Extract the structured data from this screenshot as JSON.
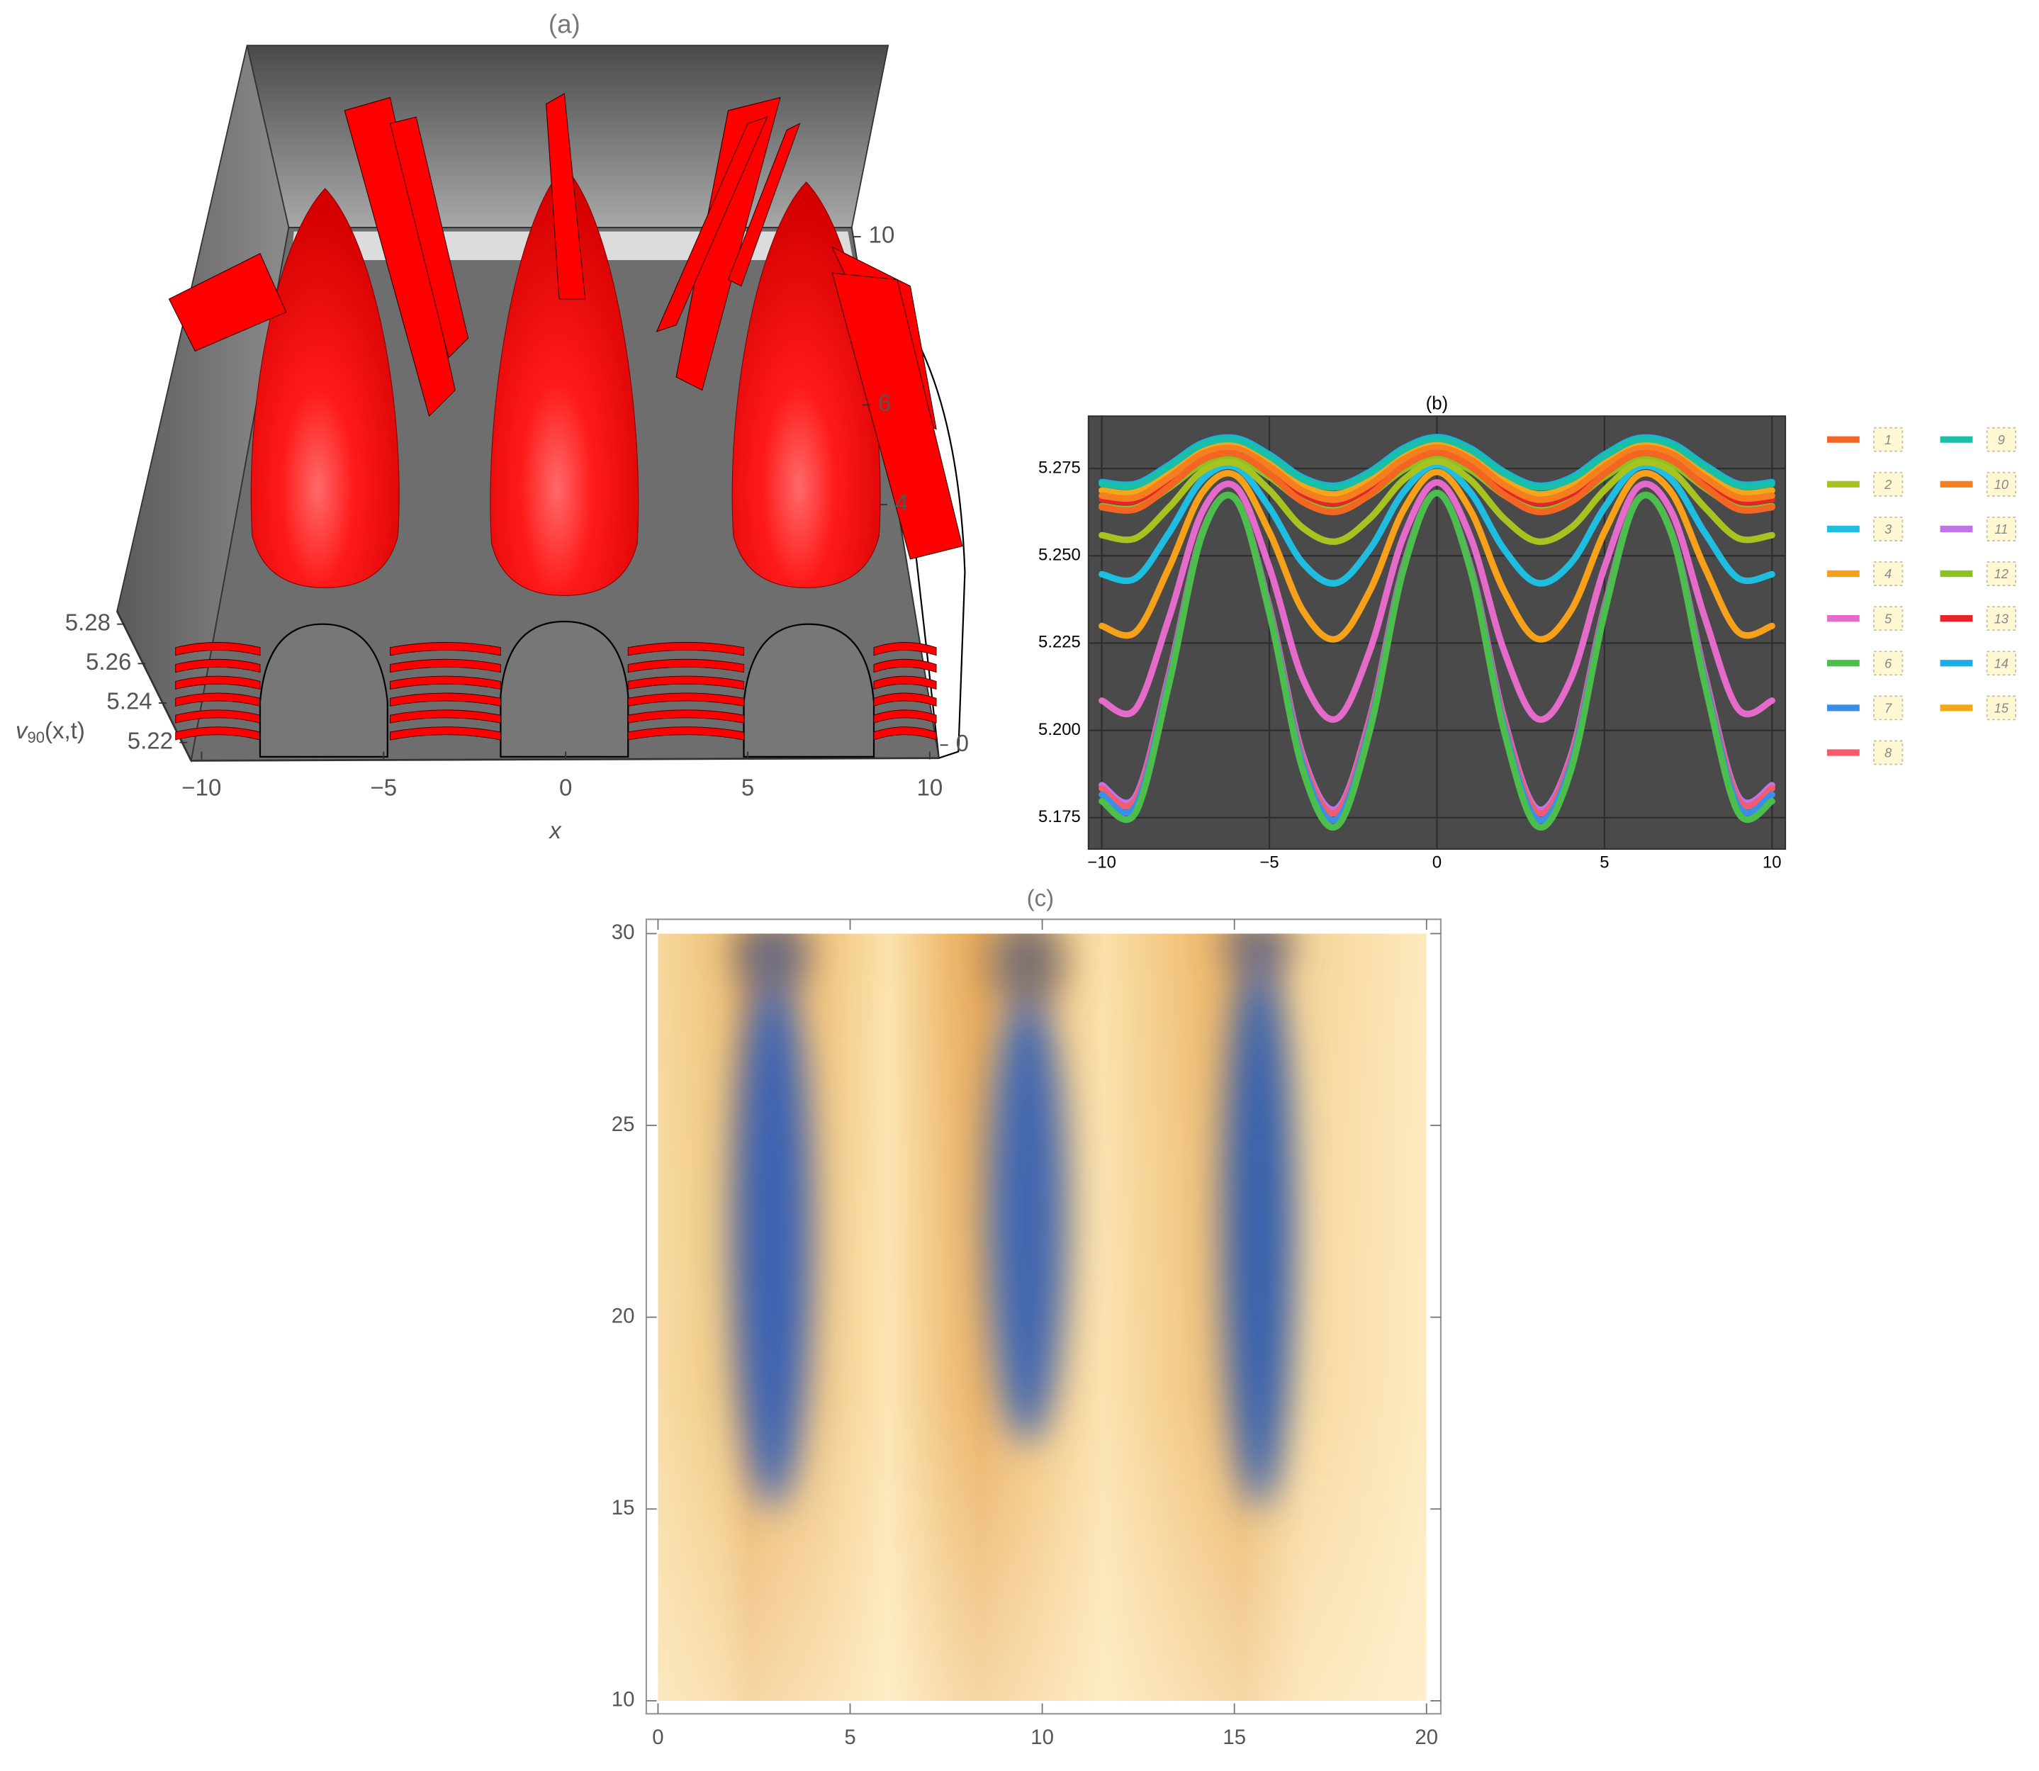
{
  "chart_data": [
    {
      "type": "surface3d",
      "title": "(a)",
      "xlabel": "x",
      "zlabel": [
        "v",
        "90",
        "(x,t)"
      ],
      "xlim": [
        -10,
        10
      ],
      "xticks": [
        {
          "value": -10,
          "label": "−10"
        },
        {
          "value": -5,
          "label": "−5"
        },
        0,
        5,
        10
      ],
      "ylim": [
        0,
        10
      ],
      "yticks": [
        0,
        4,
        6,
        10
      ],
      "zlim": [
        5.22,
        5.28
      ],
      "zticks": [
        5.22,
        5.24,
        5.26,
        5.28
      ],
      "color": "#ff0000"
    },
    {
      "type": "line",
      "title": "(b)",
      "x": [
        -10,
        -9,
        -8,
        -7,
        -6,
        -5,
        -4,
        -3,
        -2,
        -1,
        0,
        1,
        2,
        3,
        4,
        5,
        6,
        7,
        8,
        9,
        10
      ],
      "series": [
        {
          "name": "1",
          "color": "#f26522",
          "values": [
            5.2639,
            5.2633,
            5.2698,
            5.2774,
            5.2792,
            5.2734,
            5.2654,
            5.2626,
            5.2675,
            5.2756,
            5.2795,
            5.2756,
            5.2675,
            5.2626,
            5.2654,
            5.2734,
            5.2792,
            5.2774,
            5.2698,
            5.2633,
            5.2639
          ]
        },
        {
          "name": "2",
          "color": "#a6c31f",
          "values": [
            5.2559,
            5.255,
            5.2638,
            5.2742,
            5.2765,
            5.2688,
            5.258,
            5.2541,
            5.2607,
            5.2717,
            5.277,
            5.2717,
            5.2607,
            5.2541,
            5.258,
            5.2688,
            5.2765,
            5.2742,
            5.2638,
            5.255,
            5.2559
          ]
        },
        {
          "name": "3",
          "color": "#1fbde0",
          "values": [
            5.2447,
            5.2435,
            5.2565,
            5.2718,
            5.2753,
            5.2638,
            5.2479,
            5.2422,
            5.2519,
            5.2682,
            5.276,
            5.2682,
            5.2519,
            5.2422,
            5.2479,
            5.2638,
            5.2753,
            5.2718,
            5.2565,
            5.2435,
            5.2447
          ]
        },
        {
          "name": "4",
          "color": "#f7a11a",
          "values": [
            5.2299,
            5.2281,
            5.2465,
            5.2681,
            5.273,
            5.2568,
            5.2343,
            5.2262,
            5.24,
            5.263,
            5.274,
            5.263,
            5.24,
            5.2262,
            5.2343,
            5.2568,
            5.273,
            5.2681,
            5.2465,
            5.2281,
            5.2299
          ]
        },
        {
          "name": "5",
          "color": "#e56bcb",
          "values": [
            5.2085,
            5.206,
            5.2321,
            5.2626,
            5.2697,
            5.2467,
            5.2148,
            5.2033,
            5.2229,
            5.2554,
            5.271,
            5.2554,
            5.2229,
            5.2033,
            5.2148,
            5.2467,
            5.2697,
            5.2626,
            5.2321,
            5.206,
            5.2085
          ]
        },
        {
          "name": "6",
          "color": "#4cbe4c",
          "values": [
            5.1797,
            5.1763,
            5.213,
            5.2562,
            5.2661,
            5.2336,
            5.1886,
            5.1725,
            5.2,
            5.2459,
            5.268,
            5.2459,
            5.2,
            5.1725,
            5.1886,
            5.2336,
            5.2661,
            5.2562,
            5.213,
            5.1763,
            5.1797
          ]
        },
        {
          "name": "7",
          "color": "#3b8ee6",
          "values": [
            5.1816,
            5.1782,
            5.2142,
            5.2564,
            5.2661,
            5.2343,
            5.1903,
            5.1745,
            5.2014,
            5.2464,
            5.268,
            5.2464,
            5.2014,
            5.1745,
            5.1903,
            5.2343,
            5.2661,
            5.2564,
            5.2142,
            5.1782,
            5.1816
          ]
        },
        {
          "name": "8",
          "color": "#f25c6e",
          "values": [
            5.1834,
            5.1801,
            5.2153,
            5.2567,
            5.2662,
            5.2351,
            5.1919,
            5.1765,
            5.2029,
            5.2469,
            5.268,
            5.2469,
            5.2029,
            5.1765,
            5.1919,
            5.2351,
            5.2662,
            5.2567,
            5.2153,
            5.1801,
            5.1834
          ]
        },
        {
          "name": "9",
          "color": "#1abfa8",
          "values": [
            5.2706,
            5.2701,
            5.2755,
            5.2818,
            5.2832,
            5.2785,
            5.2719,
            5.2696,
            5.2736,
            5.2803,
            5.2835,
            5.2803,
            5.2736,
            5.2696,
            5.2719,
            5.2785,
            5.2832,
            5.2818,
            5.2755,
            5.2701,
            5.2706
          ]
        },
        {
          "name": "10",
          "color": "#f57f1f",
          "values": [
            5.2672,
            5.2667,
            5.2724,
            5.2792,
            5.2807,
            5.2756,
            5.2686,
            5.2661,
            5.2704,
            5.2776,
            5.281,
            5.2776,
            5.2704,
            5.2661,
            5.2686,
            5.2756,
            5.2807,
            5.2792,
            5.2724,
            5.2667,
            5.2672
          ]
        },
        {
          "name": "11",
          "color": "#c074e8",
          "values": [
            5.1843,
            5.181,
            5.2159,
            5.2568,
            5.2662,
            5.2354,
            5.1928,
            5.1775,
            5.2036,
            5.2471,
            5.268,
            5.2471,
            5.2036,
            5.1775,
            5.1928,
            5.2354,
            5.2662,
            5.2568,
            5.2159,
            5.181,
            5.1843
          ]
        },
        {
          "name": "12",
          "color": "#8cc21f",
          "values": [
            5.2642,
            5.2637,
            5.2694,
            5.2762,
            5.2777,
            5.2726,
            5.2656,
            5.2631,
            5.2674,
            5.2746,
            5.278,
            5.2746,
            5.2674,
            5.2631,
            5.2656,
            5.2726,
            5.2777,
            5.2762,
            5.2694,
            5.2637,
            5.2642
          ]
        },
        {
          "name": "13",
          "color": "#e8242b",
          "values": [
            5.2662,
            5.2657,
            5.2714,
            5.2782,
            5.2797,
            5.2746,
            5.2676,
            5.2651,
            5.2694,
            5.2766,
            5.28,
            5.2766,
            5.2694,
            5.2651,
            5.2676,
            5.2746,
            5.2797,
            5.2782,
            5.2714,
            5.2657,
            5.2662
          ]
        },
        {
          "name": "14",
          "color": "#1aaee8",
          "values": [
            5.2711,
            5.2706,
            5.276,
            5.2823,
            5.2837,
            5.279,
            5.2724,
            5.2701,
            5.2741,
            5.2808,
            5.284,
            5.2808,
            5.2741,
            5.2701,
            5.2724,
            5.279,
            5.2837,
            5.2823,
            5.276,
            5.2706,
            5.2711
          ]
        },
        {
          "name": "15",
          "color": "#f2a81a",
          "values": [
            5.2687,
            5.2682,
            5.2739,
            5.2807,
            5.2822,
            5.2771,
            5.2701,
            5.2676,
            5.2719,
            5.2791,
            5.2825,
            5.2791,
            5.2719,
            5.2676,
            5.2701,
            5.2771,
            5.2822,
            5.2807,
            5.2739,
            5.2682,
            5.2687
          ]
        }
      ],
      "xlim": [
        -10.4,
        10.4
      ],
      "ylim": [
        5.166,
        5.29
      ],
      "xticks": [
        {
          "value": -10,
          "label": "−10"
        },
        {
          "value": -5,
          "label": "−5"
        },
        0,
        5,
        10
      ],
      "yticks": [
        5.175,
        {
          "value": 5.2,
          "label": "5.200"
        },
        5.225,
        {
          "value": 5.25,
          "label": "5.250"
        },
        5.275
      ],
      "grid": true,
      "legend": "right"
    },
    {
      "type": "density",
      "title": "(c)",
      "xlim": [
        0,
        20
      ],
      "ylim": [
        10,
        30
      ],
      "xticks": [
        0,
        5,
        10,
        15,
        20
      ],
      "yticks": [
        10,
        15,
        20,
        25,
        30
      ]
    }
  ]
}
